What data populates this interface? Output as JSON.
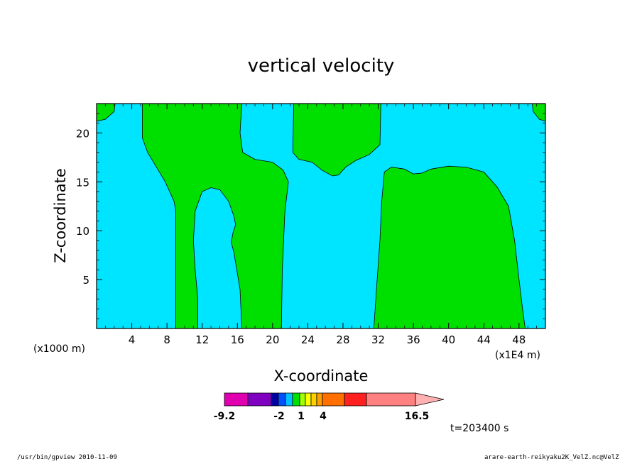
{
  "chart_data": {
    "type": "contour",
    "title": "vertical velocity",
    "xlabel": "X-coordinate",
    "ylabel": "Z-coordinate",
    "x_unit_left": "(x1000 m)",
    "x_unit_right": "(x1E4 m)",
    "xlim": [
      0,
      51
    ],
    "ylim": [
      0,
      23
    ],
    "xticks": [
      4,
      8,
      12,
      16,
      20,
      24,
      28,
      32,
      36,
      40,
      44,
      48
    ],
    "yticks": [
      5,
      10,
      15,
      20
    ],
    "background_color": "#00e5ff",
    "positive_color": "#00e000",
    "contour_regions": [
      {
        "name": "top-left corner",
        "points": [
          [
            0,
            23
          ],
          [
            0,
            21.2
          ],
          [
            1,
            21.4
          ],
          [
            2,
            22.2
          ],
          [
            2.1,
            23
          ]
        ]
      },
      {
        "name": "column 5-16",
        "points": [
          [
            5.2,
            23
          ],
          [
            5.2,
            19.5
          ],
          [
            5.8,
            18
          ],
          [
            6.8,
            16.5
          ],
          [
            7.8,
            15
          ],
          [
            8.8,
            13
          ],
          [
            9,
            12
          ],
          [
            9,
            6
          ],
          [
            9,
            3
          ],
          [
            9,
            0
          ],
          [
            11.5,
            0
          ],
          [
            11.5,
            3
          ],
          [
            11.2,
            6
          ],
          [
            11,
            9
          ],
          [
            11.2,
            12
          ],
          [
            12,
            14
          ],
          [
            13,
            14.4
          ],
          [
            14,
            14.2
          ],
          [
            15,
            13
          ],
          [
            15.6,
            11.5
          ],
          [
            15.8,
            10.6
          ],
          [
            15.5,
            9.8
          ],
          [
            15.3,
            8.8
          ],
          [
            15.6,
            7.8
          ],
          [
            16.3,
            4
          ],
          [
            16.5,
            0
          ],
          [
            21,
            0
          ],
          [
            21.1,
            6
          ],
          [
            21.4,
            12
          ],
          [
            21.8,
            15
          ],
          [
            21.2,
            16.2
          ],
          [
            20,
            17
          ],
          [
            18,
            17.3
          ],
          [
            16.6,
            18
          ],
          [
            16.3,
            20
          ],
          [
            16.5,
            23
          ]
        ]
      },
      {
        "name": "upper blob 22-32",
        "points": [
          [
            22.4,
            23
          ],
          [
            22.3,
            18
          ],
          [
            23,
            17.3
          ],
          [
            24.5,
            17
          ],
          [
            25.6,
            16.2
          ],
          [
            26.8,
            15.6
          ],
          [
            27.5,
            15.7
          ],
          [
            28.3,
            16.5
          ],
          [
            29.5,
            17.2
          ],
          [
            31,
            17.8
          ],
          [
            32.2,
            18.8
          ],
          [
            32.3,
            23
          ]
        ]
      },
      {
        "name": "right block 31-49",
        "points": [
          [
            31.5,
            0
          ],
          [
            31.8,
            4
          ],
          [
            32.2,
            9
          ],
          [
            32.4,
            13
          ],
          [
            32.7,
            16
          ],
          [
            33.5,
            16.5
          ],
          [
            35,
            16.3
          ],
          [
            36,
            15.8
          ],
          [
            37,
            15.9
          ],
          [
            38,
            16.3
          ],
          [
            40,
            16.6
          ],
          [
            42,
            16.5
          ],
          [
            44,
            16
          ],
          [
            45.5,
            14.5
          ],
          [
            46.8,
            12.5
          ],
          [
            47.5,
            9
          ],
          [
            48,
            5
          ],
          [
            48.4,
            2
          ],
          [
            48.7,
            0
          ]
        ]
      },
      {
        "name": "top-right corner",
        "points": [
          [
            49.5,
            23
          ],
          [
            49.6,
            22.2
          ],
          [
            50.3,
            21.4
          ],
          [
            51,
            21.2
          ],
          [
            51,
            23
          ]
        ]
      }
    ],
    "colorbar": {
      "tick_labels": [
        "-9.2",
        "-2",
        "1",
        "4",
        "16.5"
      ],
      "colors": [
        "#e000b0",
        "#8000c0",
        "#0000a0",
        "#0050ff",
        "#00c0ff",
        "#00e000",
        "#a0ff00",
        "#ffff00",
        "#ffd000",
        "#ffa000",
        "#ff7000",
        "#ff2020",
        "#ff8080",
        "#ffb0b0"
      ]
    },
    "time_label": "t=203400 s"
  },
  "footer": {
    "left": "/usr/bin/gpview   2010-11-09",
    "right": "arare-earth-reikyaku2K_VelZ.nc@VelZ"
  }
}
